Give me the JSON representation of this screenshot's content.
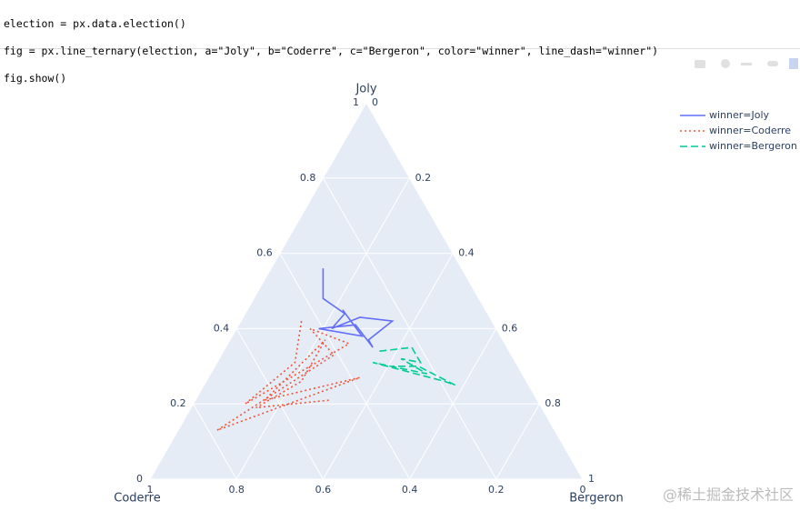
{
  "code": [
    "election = px.data.election()",
    "fig = px.line_ternary(election, a=\"Joly\", b=\"Coderre\", c=\"Bergeron\", color=\"winner\", line_dash=\"winner\")",
    "fig.show()"
  ],
  "watermark": "@稀土掘金技术社区",
  "chart_data": {
    "type": "ternary_line",
    "aaxis": {
      "title": "Joly",
      "ticks": [
        0,
        0.2,
        0.4,
        0.6,
        0.8,
        1
      ]
    },
    "baxis": {
      "title": "Coderre",
      "ticks": [
        0,
        0.2,
        0.4,
        0.6,
        0.8,
        1
      ]
    },
    "caxis": {
      "title": "Bergeron",
      "ticks": [
        0,
        0.2,
        0.4,
        0.6,
        0.8,
        1
      ]
    },
    "grid": true,
    "legend": "top right",
    "series": [
      {
        "name": "winner=Joly",
        "color": "#636efa",
        "dash": "solid",
        "a": [
          0.56,
          0.48,
          0.44,
          0.4,
          0.43,
          0.42,
          0.37,
          0.35,
          0.41,
          0.4,
          0.38,
          0.45
        ],
        "b": [
          0.32,
          0.36,
          0.33,
          0.38,
          0.3,
          0.23,
          0.31,
          0.31,
          0.32,
          0.41,
          0.32,
          0.33
        ],
        "c": [
          0.12,
          0.16,
          0.23,
          0.22,
          0.27,
          0.35,
          0.32,
          0.34,
          0.27,
          0.19,
          0.3,
          0.22
        ]
      },
      {
        "name": "winner=Coderre",
        "color": "#EF553B",
        "dash": "dot",
        "a": [
          0.42,
          0.31,
          0.2,
          0.36,
          0.4,
          0.33,
          0.13,
          0.27,
          0.21,
          0.37,
          0.26,
          0.19,
          0.21
        ],
        "b": [
          0.44,
          0.51,
          0.68,
          0.36,
          0.43,
          0.41,
          0.78,
          0.38,
          0.63,
          0.41,
          0.52,
          0.66,
          0.48
        ],
        "c": [
          0.14,
          0.18,
          0.12,
          0.28,
          0.17,
          0.26,
          0.09,
          0.35,
          0.16,
          0.22,
          0.22,
          0.15,
          0.31
        ]
      },
      {
        "name": "winner=Bergeron",
        "color": "#00cc96",
        "dash": "dash",
        "a": [
          0.34,
          0.35,
          0.31,
          0.32,
          0.28,
          0.31,
          0.26,
          0.25,
          0.3,
          0.3
        ],
        "b": [
          0.3,
          0.22,
          0.22,
          0.26,
          0.22,
          0.33,
          0.19,
          0.17,
          0.23,
          0.29
        ],
        "c": [
          0.36,
          0.43,
          0.47,
          0.42,
          0.5,
          0.36,
          0.55,
          0.58,
          0.47,
          0.41
        ]
      }
    ]
  }
}
